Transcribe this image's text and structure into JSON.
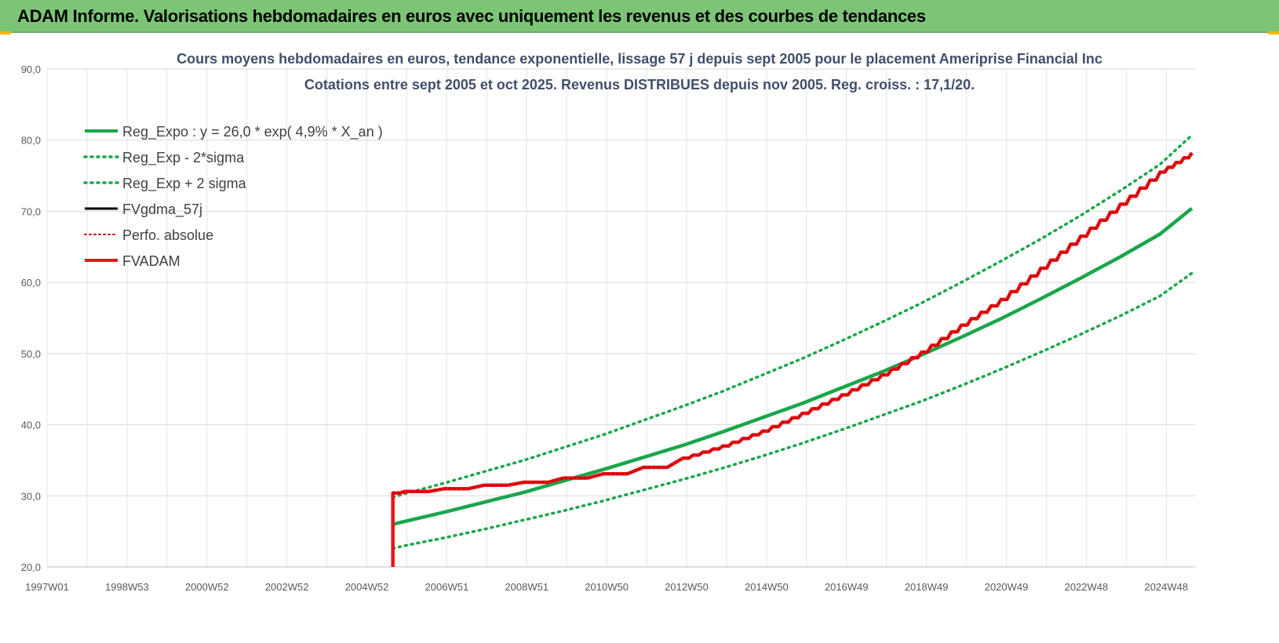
{
  "banner": {
    "title": "ADAM Informe. Valorisations hebdomadaires en euros avec uniquement les revenus et des courbes de tendances"
  },
  "chart_data": {
    "type": "line",
    "title": "Cours moyens hebdomadaires en euros, tendance exponentielle, lissage 57 j depuis sept 2005 pour le placement Ameriprise Financial Inc",
    "subtitle": "Cotations entre sept 2005 et oct 2025. Revenus DISTRIBUES depuis nov 2005. Reg. croiss. : 17,1/20.",
    "xlabel": "",
    "ylabel": "",
    "x_ticks": [
      "1997W01",
      "1998W53",
      "2000W52",
      "2002W52",
      "2004W52",
      "2006W51",
      "2008W51",
      "2010W50",
      "2012W50",
      "2014W50",
      "2016W49",
      "2018W49",
      "2020W49",
      "2022W48",
      "2024W48"
    ],
    "xlim": [
      1997.0,
      2025.9
    ],
    "ylim": [
      20,
      90
    ],
    "y_ticks": [
      "20,0",
      "30,0",
      "40,0",
      "50,0",
      "60,0",
      "70,0",
      "80,0",
      "90,0"
    ],
    "grid": true,
    "legend_position": "top-left",
    "x": [
      2005.7,
      2006.0,
      2007.0,
      2008.0,
      2009.0,
      2010.0,
      2011.0,
      2012.0,
      2013.0,
      2014.0,
      2015.0,
      2016.0,
      2017.0,
      2018.0,
      2019.0,
      2020.0,
      2021.0,
      2022.0,
      2023.0,
      2024.0,
      2025.0,
      2025.8
    ],
    "series": [
      {
        "name": "Reg_Expo : y = 26,0 * exp( 4,9% *  X_an )",
        "color": "#1aa64a",
        "style": "solid",
        "values": [
          26.0,
          26.4,
          27.7,
          29.1,
          30.5,
          32.1,
          33.7,
          35.4,
          37.1,
          39.0,
          41.0,
          43.0,
          45.2,
          47.4,
          49.8,
          52.3,
          54.9,
          57.7,
          60.6,
          63.6,
          66.8,
          70.4
        ]
      },
      {
        "name": "Reg_Exp - 2*sigma",
        "color": "#1aa64a",
        "style": "dotted",
        "values": [
          22.6,
          23.0,
          24.1,
          25.3,
          26.6,
          27.9,
          29.3,
          30.8,
          32.3,
          33.9,
          35.6,
          37.4,
          39.3,
          41.3,
          43.3,
          45.5,
          47.8,
          50.2,
          52.7,
          55.3,
          58.1,
          61.3
        ]
      },
      {
        "name": "Reg_Exp + 2 sigma",
        "color": "#1aa64a",
        "style": "dotted",
        "values": [
          29.8,
          30.3,
          31.8,
          33.4,
          35.0,
          36.8,
          38.6,
          40.6,
          42.6,
          44.7,
          47.0,
          49.3,
          51.8,
          54.4,
          57.1,
          60.0,
          63.0,
          66.1,
          69.4,
          72.9,
          76.6,
          80.7
        ]
      },
      {
        "name": "FVgdma_57j",
        "color": "#000000",
        "style": "solid",
        "values": [
          30.4,
          30.6,
          31.0,
          31.5,
          31.9,
          32.5,
          33.1,
          34.0,
          35.3,
          37.0,
          39.1,
          41.6,
          44.2,
          47.0,
          50.2,
          54.0,
          57.6,
          62.0,
          66.5,
          71.0,
          75.5,
          78.2
        ]
      },
      {
        "name": "Perfo. absolue",
        "color": "#c00000",
        "style": "dotted",
        "values": [
          30.4,
          30.6,
          31.0,
          31.5,
          31.9,
          32.5,
          33.1,
          34.0,
          35.3,
          37.0,
          39.1,
          41.6,
          44.2,
          47.0,
          50.2,
          54.0,
          57.6,
          62.0,
          66.5,
          71.0,
          75.5,
          78.2
        ]
      },
      {
        "name": "FVADAM",
        "color": "#e8141b",
        "style": "solid",
        "values": [
          30.4,
          30.6,
          31.0,
          31.5,
          31.9,
          32.5,
          33.1,
          34.0,
          35.3,
          37.0,
          39.1,
          41.6,
          44.2,
          47.0,
          50.2,
          54.0,
          57.6,
          62.0,
          66.5,
          71.0,
          75.5,
          78.2
        ]
      }
    ]
  }
}
